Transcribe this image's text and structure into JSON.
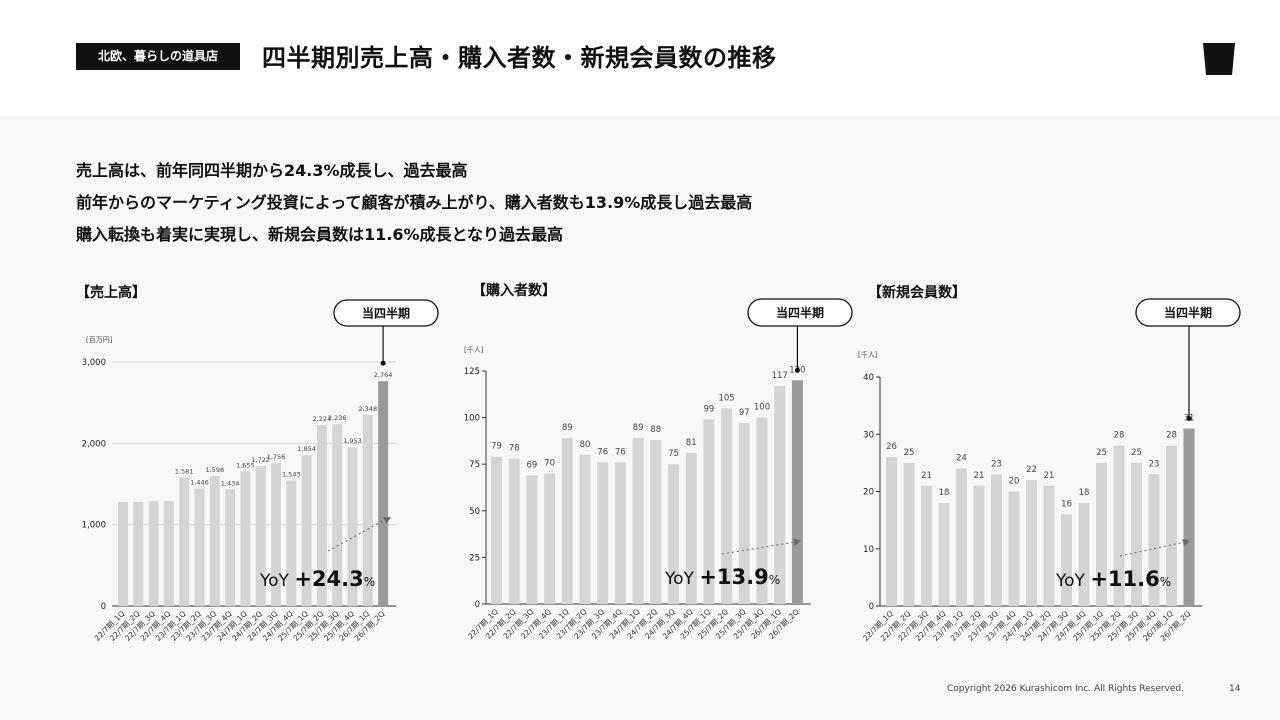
{
  "header": {
    "brand": "北欧、暮らしの道具店",
    "title": "四半期別売上高・購入者数・新規会員数の推移"
  },
  "summary": {
    "lines": [
      "売上高は、前年同四半期から24.3%成長し、過去最高",
      "前年からのマーケティング投資によって顧客が積み上がり、購入者数も13.9%成長し過去最高",
      "購入転換も着実に実現し、新規会員数は11.6%成長となり過去最高"
    ]
  },
  "footer": {
    "copyright": "Copyright 2026 Kurashicom Inc. All Rights Reserved.",
    "page": "14"
  },
  "chart_data": [
    {
      "type": "bar",
      "title": "【売上高】",
      "unit": "[百万円]",
      "callout": "当四半期",
      "yoy_prefix": "YoY ",
      "yoy_value": "+24.3",
      "yoy_suffix": "%",
      "categories": [
        "22/7期_1Q",
        "22/7期_2Q",
        "22/7期_3Q",
        "22/7期_4Q",
        "23/7期_1Q",
        "23/7期_2Q",
        "23/7期_3Q",
        "23/7期_4Q",
        "24/7期_1Q",
        "24/7期_2Q",
        "24/7期_3Q",
        "24/7期_4Q",
        "25/7期_1Q",
        "25/7期_2Q",
        "25/7期_3Q",
        "25/7期_4Q",
        "26/7期_1Q",
        "26/7期_2Q"
      ],
      "values": [
        1280,
        1280,
        1290,
        1290,
        1581,
        1446,
        1598,
        1434,
        1655,
        1722,
        1756,
        1543,
        1854,
        2224,
        2236,
        1953,
        2348,
        2764
      ],
      "labels": [
        "",
        "",
        "",
        "",
        "1,581",
        "1,446",
        "1,598",
        "1,434",
        "1,655",
        "1,722",
        "1,756",
        "1,543",
        "1,854",
        "2,224",
        "2,236",
        "1,953",
        "2,348",
        "2,764"
      ],
      "yticks": [
        "0",
        "1,000",
        "2,000",
        "3,000"
      ],
      "ytick_values": [
        0,
        1000,
        2000,
        3000
      ],
      "ylim": [
        0,
        3000
      ],
      "grid": true
    },
    {
      "type": "bar",
      "title": "【購入者数】",
      "unit": "[千人]",
      "callout": "当四半期",
      "yoy_prefix": "YoY ",
      "yoy_value": "+13.9",
      "yoy_suffix": "%",
      "categories": [
        "22/7期_1Q",
        "22/7期_2Q",
        "22/7期_3Q",
        "22/7期_4Q",
        "23/7期_1Q",
        "23/7期_2Q",
        "23/7期_3Q",
        "23/7期_4Q",
        "24/7期_1Q",
        "24/7期_2Q",
        "24/7期_3Q",
        "24/7期_4Q",
        "25/7期_1Q",
        "25/7期_2Q",
        "25/7期_3Q",
        "25/7期_4Q",
        "26/7期_1Q",
        "26/7期_2Q"
      ],
      "values": [
        79,
        78,
        69,
        70,
        89,
        80,
        76,
        76,
        89,
        88,
        75,
        81,
        99,
        105,
        97,
        100,
        117,
        120
      ],
      "labels": [
        "79",
        "78",
        "69",
        "70",
        "89",
        "80",
        "76",
        "76",
        "89",
        "88",
        "75",
        "81",
        "99",
        "105",
        "97",
        "100",
        "117",
        "120"
      ],
      "yticks": [
        "0",
        "25",
        "50",
        "75",
        "100",
        "125"
      ],
      "ytick_values": [
        0,
        25,
        50,
        75,
        100,
        125
      ],
      "ylim": [
        0,
        125
      ],
      "grid": false
    },
    {
      "type": "bar",
      "title": "【新規会員数】",
      "unit": "[千人]",
      "callout": "当四半期",
      "yoy_prefix": "YoY ",
      "yoy_value": "+11.6",
      "yoy_suffix": "%",
      "categories": [
        "22/7期_1Q",
        "22/7期_2Q",
        "22/7期_3Q",
        "22/7期_4Q",
        "23/7期_1Q",
        "23/7期_2Q",
        "23/7期_3Q",
        "23/7期_4Q",
        "24/7期_1Q",
        "24/7期_2Q",
        "24/7期_3Q",
        "24/7期_4Q",
        "25/7期_1Q",
        "25/7期_2Q",
        "25/7期_3Q",
        "25/7期_4Q",
        "26/7期_1Q",
        "26/7期_2Q"
      ],
      "values": [
        26,
        25,
        21,
        18,
        24,
        21,
        23,
        20,
        22,
        21,
        16,
        18,
        25,
        28,
        25,
        23,
        28,
        31
      ],
      "labels": [
        "26",
        "25",
        "21",
        "18",
        "24",
        "21",
        "23",
        "20",
        "22",
        "21",
        "16",
        "18",
        "25",
        "28",
        "25",
        "23",
        "28",
        "31"
      ],
      "yticks": [
        "0",
        "10",
        "20",
        "30",
        "40"
      ],
      "ytick_values": [
        0,
        10,
        20,
        30,
        40
      ],
      "ylim": [
        0,
        40
      ],
      "grid": false
    }
  ],
  "colors": {
    "bar": "#d4d4d4",
    "bar_current": "#9a9a9a",
    "text": "#111111",
    "axis": "#333333",
    "grid": "#d9d9d9"
  }
}
